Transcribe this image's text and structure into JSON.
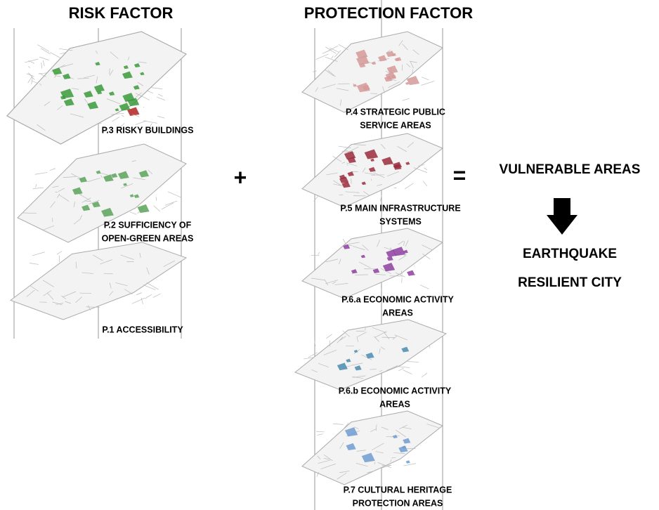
{
  "header": {
    "risk_title": "RISK FACTOR",
    "protection_title": "PROTECTION FACTOR"
  },
  "risk_factors": [
    {
      "lines": [
        "P.3 RISKY BUILDINGS"
      ]
    },
    {
      "lines": [
        "P.2 SUFFICIENCY OF",
        "OPEN-GREEN AREAS"
      ]
    },
    {
      "lines": [
        "P.1 ACCESSIBILITY"
      ]
    }
  ],
  "protection_factors": [
    {
      "lines": [
        "P.4 STRATEGIC PUBLIC",
        "SERVICE AREAS"
      ]
    },
    {
      "lines": [
        "P.5 MAIN INFRASTRUCTURE",
        "SYSTEMS"
      ]
    },
    {
      "lines": [
        "P.6.a ECONOMIC ACTIVITY",
        "AREAS"
      ]
    },
    {
      "lines": [
        "P.6.b ECONOMIC ACTIVITY",
        "AREAS"
      ]
    },
    {
      "lines": [
        "P.7 CULTURAL HERITAGE",
        "PROTECTION AREAS"
      ]
    }
  ],
  "operators": {
    "plus": "+",
    "equals": "="
  },
  "result": {
    "vulnerable": "VULNERABLE AREAS",
    "outcome_lines": [
      "EARTHQUAKE",
      "RESILIENT CITY"
    ]
  }
}
